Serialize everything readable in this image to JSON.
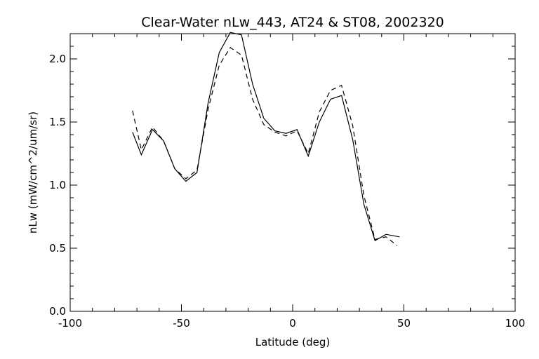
{
  "chart_data": {
    "type": "line",
    "title": "Clear-Water nLw_443, AT24 & ST08, 2002320",
    "xlabel": "Latitude (deg)",
    "ylabel": "nLw (mW/cm^2/um/sr)",
    "xlim": [
      -100,
      100
    ],
    "ylim": [
      0.0,
      2.2
    ],
    "xticks": [
      "-100",
      "-50",
      "0",
      "50",
      "100"
    ],
    "xtick_values": [
      -100,
      -50,
      0,
      50,
      100
    ],
    "yticks": [
      "0.0",
      "0.5",
      "1.0",
      "1.5",
      "2.0"
    ],
    "ytick_values": [
      0.0,
      0.5,
      1.0,
      1.5,
      2.0
    ],
    "grid": false,
    "series": [
      {
        "style": "solid",
        "color": "#000000",
        "x": [
          -72,
          -68,
          -63,
          -58,
          -53,
          -48,
          -43,
          -38,
          -33,
          -28,
          -23,
          -18,
          -13,
          -8,
          -3,
          2,
          7,
          12,
          17,
          22,
          27,
          32,
          37,
          42,
          48
        ],
        "y": [
          1.42,
          1.24,
          1.44,
          1.35,
          1.13,
          1.03,
          1.1,
          1.65,
          2.05,
          2.21,
          2.19,
          1.8,
          1.53,
          1.43,
          1.41,
          1.44,
          1.23,
          1.5,
          1.68,
          1.71,
          1.36,
          0.85,
          0.56,
          0.61,
          0.59
        ]
      },
      {
        "style": "dashed",
        "color": "#000000",
        "x": [
          -72,
          -68,
          -63,
          -58,
          -53,
          -48,
          -43,
          -38,
          -33,
          -28,
          -23,
          -18,
          -13,
          -8,
          -3,
          2,
          7,
          12,
          17,
          22,
          27,
          32,
          37,
          42,
          47
        ],
        "y": [
          1.59,
          1.28,
          1.46,
          1.35,
          1.13,
          1.05,
          1.12,
          1.6,
          1.95,
          2.09,
          2.03,
          1.68,
          1.48,
          1.42,
          1.39,
          1.43,
          1.25,
          1.58,
          1.75,
          1.79,
          1.47,
          0.92,
          0.57,
          0.59,
          0.52
        ]
      }
    ]
  }
}
